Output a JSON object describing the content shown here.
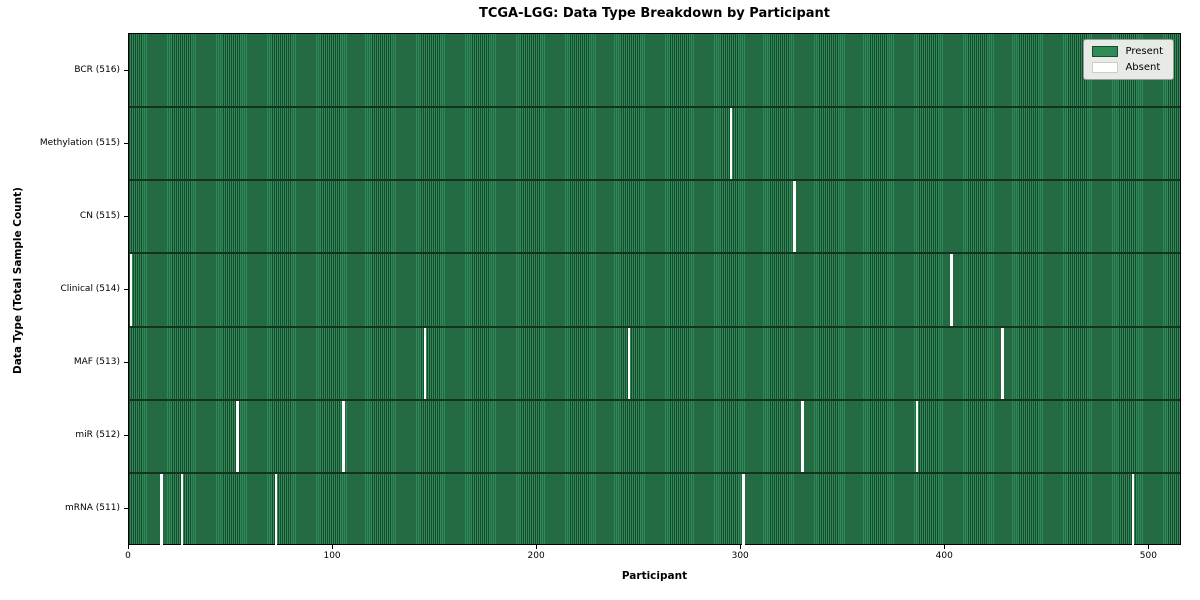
{
  "title": "TCGA-LGG: Data Type Breakdown by Participant",
  "xlabel": "Participant",
  "ylabel": "Data Type (Total Sample Count)",
  "legend": {
    "present_label": "Present",
    "absent_label": "Absent"
  },
  "colors": {
    "present_fill": "#2e8b57",
    "present_edge": "#1a4a2d",
    "absent": "#ffffff",
    "row_separator": "#14321f",
    "legend_bg": "#e7ebe5"
  },
  "chart_data": {
    "type": "heatmap",
    "title": "TCGA-LGG: Data Type Breakdown by Participant",
    "xlabel": "Participant",
    "ylabel": "Data Type (Total Sample Count)",
    "x_range": [
      0,
      516
    ],
    "x_ticks": [
      0,
      100,
      200,
      300,
      400,
      500
    ],
    "total_participants": 516,
    "legend_entries": [
      "Present",
      "Absent"
    ],
    "rows": [
      {
        "label": "BCR (516)",
        "count": 516,
        "absent": []
      },
      {
        "label": "Methylation (515)",
        "count": 515,
        "absent": [
          295
        ]
      },
      {
        "label": "CN (515)",
        "count": 515,
        "absent": [
          326
        ]
      },
      {
        "label": "Clinical (514)",
        "count": 514,
        "absent": [
          1,
          403
        ]
      },
      {
        "label": "MAF (513)",
        "count": 513,
        "absent": [
          145,
          245,
          428
        ]
      },
      {
        "label": "miR (512)",
        "count": 512,
        "absent": [
          53,
          105,
          330,
          386
        ]
      },
      {
        "label": "mRNA (511)",
        "count": 511,
        "absent": [
          16,
          26,
          72,
          301,
          492
        ]
      }
    ]
  }
}
